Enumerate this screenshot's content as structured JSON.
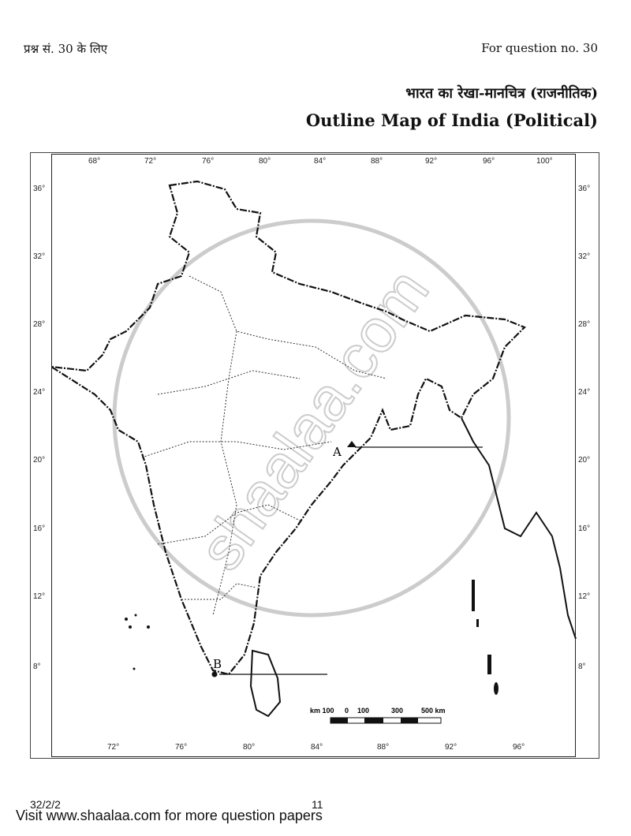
{
  "header": {
    "left": "प्रश्न सं. 30 के लिए",
    "right": "For question no. 30"
  },
  "title": {
    "hindi": "भारत का रेखा-मानचित्र (राजनीतिक)",
    "english": "Outline Map of India (Political)"
  },
  "map": {
    "top_longitudes": [
      "68°",
      "72°",
      "76°",
      "80°",
      "84°",
      "88°",
      "92°",
      "96°",
      "100°"
    ],
    "bottom_longitudes": [
      "72°",
      "76°",
      "80°",
      "84°",
      "88°",
      "92°",
      "96°"
    ],
    "latitudes": [
      "36°",
      "32°",
      "28°",
      "24°",
      "20°",
      "16°",
      "12°",
      "8°"
    ],
    "markers": [
      {
        "label": "A"
      },
      {
        "label": "B"
      }
    ],
    "scale": {
      "labels": [
        "km 100",
        "0",
        "100",
        "300",
        "500 km"
      ]
    },
    "watermark": "shaalaa.com"
  },
  "footer": {
    "code": "32/2/2",
    "page": "11",
    "note": "Visit www.shaalaa.com for more question papers"
  }
}
